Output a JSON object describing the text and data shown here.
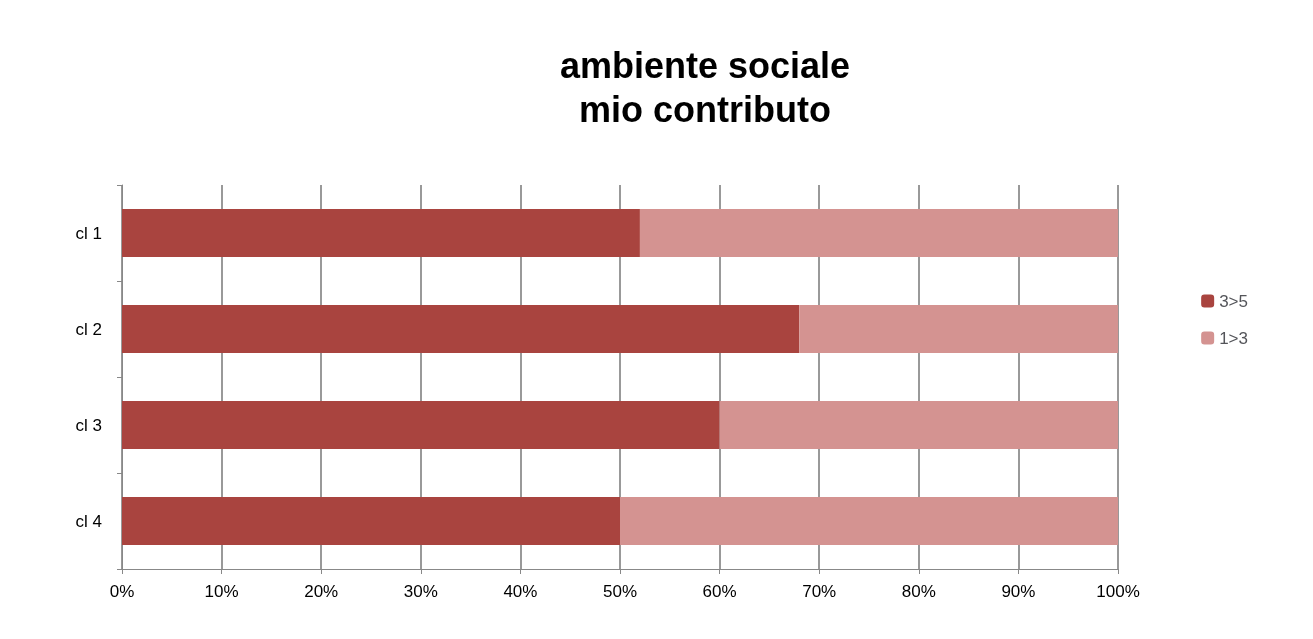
{
  "chart_data": {
    "type": "bar",
    "title": "ambiente sociale\nmio contributo",
    "orientation": "horizontal",
    "stacked": true,
    "categories": [
      "cl 1",
      "cl 2",
      "cl 3",
      "cl 4"
    ],
    "series": [
      {
        "name": "3>5",
        "color": "#a9443f",
        "values": [
          52,
          68,
          60,
          50
        ]
      },
      {
        "name": "1>3",
        "color": "#d49391",
        "values": [
          48,
          32,
          40,
          50
        ]
      }
    ],
    "xlim": [
      0,
      100
    ],
    "xticks": [
      {
        "value": 0,
        "label": "0%"
      },
      {
        "value": 10,
        "label": "10%"
      },
      {
        "value": 20,
        "label": "20%"
      },
      {
        "value": 30,
        "label": "30%"
      },
      {
        "value": 40,
        "label": "40%"
      },
      {
        "value": 50,
        "label": "50%"
      },
      {
        "value": 60,
        "label": "60%"
      },
      {
        "value": 70,
        "label": "70%"
      },
      {
        "value": 80,
        "label": "80%"
      },
      {
        "value": 90,
        "label": "90%"
      },
      {
        "value": 100,
        "label": "100%"
      }
    ],
    "grid": "x",
    "legend": "right"
  }
}
